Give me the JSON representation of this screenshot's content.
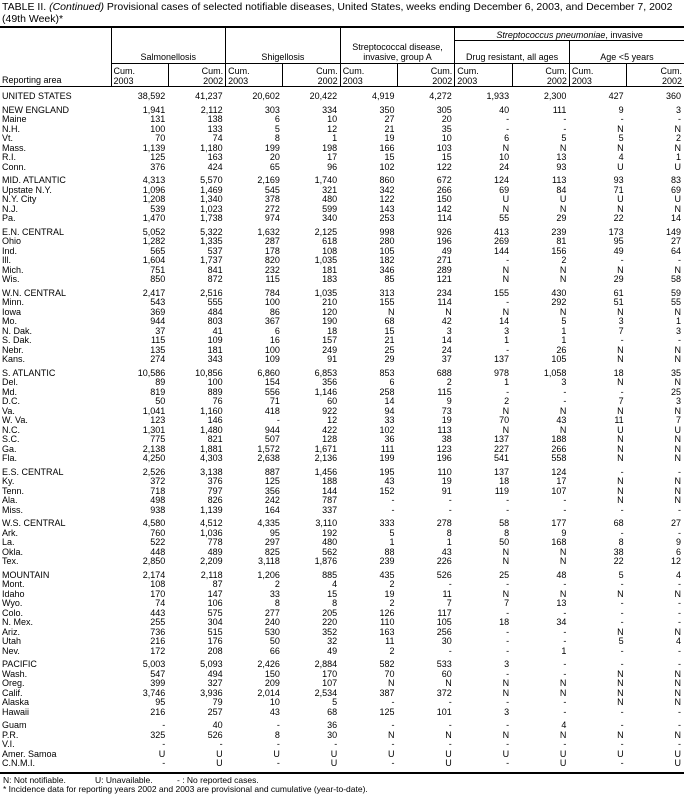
{
  "title": {
    "prefix": "TABLE II. ",
    "continued": "(Continued)",
    "text": " Provisional cases of selected notifiable diseases, United States, weeks ending December 6, 2003, and December 7, 2002 (49th Week)*"
  },
  "header": {
    "reporting_area": "Reporting area",
    "super": "Streptococcus pneumoniae",
    "super_suffix": ", invasive",
    "diseases": [
      "Salmonellosis",
      "Shigellosis",
      "Streptococcal disease, invasive, group A",
      "Drug resistant, all ages",
      "Age <5 years"
    ],
    "cum_labels": [
      "Cum. 2003",
      "Cum. 2002",
      "Cum. 2003",
      "Cum. 2002",
      "Cum. 2003",
      "Cum. 2002",
      "Cum. 2003",
      "Cum. 2002",
      "Cum. 2003",
      "Cum. 2002"
    ]
  },
  "groups": [
    [
      [
        "UNITED STATES",
        "38,592",
        "41,237",
        "20,602",
        "20,422",
        "4,919",
        "4,272",
        "1,933",
        "2,300",
        "427",
        "360"
      ]
    ],
    [
      [
        "NEW ENGLAND",
        "1,941",
        "2,112",
        "303",
        "334",
        "350",
        "305",
        "40",
        "111",
        "9",
        "3"
      ],
      [
        "Maine",
        "131",
        "138",
        "6",
        "10",
        "27",
        "20",
        "-",
        "-",
        "-",
        "-"
      ],
      [
        "N.H.",
        "100",
        "133",
        "5",
        "12",
        "21",
        "35",
        "-",
        "-",
        "N",
        "N"
      ],
      [
        "Vt.",
        "70",
        "74",
        "8",
        "1",
        "19",
        "10",
        "6",
        "5",
        "5",
        "2"
      ],
      [
        "Mass.",
        "1,139",
        "1,180",
        "199",
        "198",
        "166",
        "103",
        "N",
        "N",
        "N",
        "N"
      ],
      [
        "R.I.",
        "125",
        "163",
        "20",
        "17",
        "15",
        "15",
        "10",
        "13",
        "4",
        "1"
      ],
      [
        "Conn.",
        "376",
        "424",
        "65",
        "96",
        "102",
        "122",
        "24",
        "93",
        "U",
        "U"
      ]
    ],
    [
      [
        "MID. ATLANTIC",
        "4,313",
        "5,570",
        "2,169",
        "1,740",
        "860",
        "672",
        "124",
        "113",
        "93",
        "83"
      ],
      [
        "Upstate N.Y.",
        "1,096",
        "1,469",
        "545",
        "321",
        "342",
        "266",
        "69",
        "84",
        "71",
        "69"
      ],
      [
        "N.Y. City",
        "1,208",
        "1,340",
        "378",
        "480",
        "122",
        "150",
        "U",
        "U",
        "U",
        "U"
      ],
      [
        "N.J.",
        "539",
        "1,023",
        "272",
        "599",
        "143",
        "142",
        "N",
        "N",
        "N",
        "N"
      ],
      [
        "Pa.",
        "1,470",
        "1,738",
        "974",
        "340",
        "253",
        "114",
        "55",
        "29",
        "22",
        "14"
      ]
    ],
    [
      [
        "E.N. CENTRAL",
        "5,052",
        "5,322",
        "1,632",
        "2,125",
        "998",
        "926",
        "413",
        "239",
        "173",
        "149"
      ],
      [
        "Ohio",
        "1,282",
        "1,335",
        "287",
        "618",
        "280",
        "196",
        "269",
        "81",
        "95",
        "27"
      ],
      [
        "Ind.",
        "565",
        "537",
        "178",
        "108",
        "105",
        "49",
        "144",
        "156",
        "49",
        "64"
      ],
      [
        "Ill.",
        "1,604",
        "1,737",
        "820",
        "1,035",
        "182",
        "271",
        "-",
        "2",
        "-",
        "-"
      ],
      [
        "Mich.",
        "751",
        "841",
        "232",
        "181",
        "346",
        "289",
        "N",
        "N",
        "N",
        "N"
      ],
      [
        "Wis.",
        "850",
        "872",
        "115",
        "183",
        "85",
        "121",
        "N",
        "N",
        "29",
        "58"
      ]
    ],
    [
      [
        "W.N. CENTRAL",
        "2,417",
        "2,516",
        "784",
        "1,035",
        "313",
        "234",
        "155",
        "430",
        "61",
        "59"
      ],
      [
        "Minn.",
        "543",
        "555",
        "100",
        "210",
        "155",
        "114",
        "-",
        "292",
        "51",
        "55"
      ],
      [
        "Iowa",
        "369",
        "484",
        "86",
        "120",
        "N",
        "N",
        "N",
        "N",
        "N",
        "N"
      ],
      [
        "Mo.",
        "944",
        "803",
        "367",
        "190",
        "68",
        "42",
        "14",
        "5",
        "3",
        "1"
      ],
      [
        "N. Dak.",
        "37",
        "41",
        "6",
        "18",
        "15",
        "3",
        "3",
        "1",
        "7",
        "3"
      ],
      [
        "S. Dak.",
        "115",
        "109",
        "16",
        "157",
        "21",
        "14",
        "1",
        "1",
        "-",
        "-"
      ],
      [
        "Nebr.",
        "135",
        "181",
        "100",
        "249",
        "25",
        "24",
        "-",
        "26",
        "N",
        "N"
      ],
      [
        "Kans.",
        "274",
        "343",
        "109",
        "91",
        "29",
        "37",
        "137",
        "105",
        "N",
        "N"
      ]
    ],
    [
      [
        "S. ATLANTIC",
        "10,586",
        "10,856",
        "6,860",
        "6,853",
        "853",
        "688",
        "978",
        "1,058",
        "18",
        "35"
      ],
      [
        "Del.",
        "89",
        "100",
        "154",
        "356",
        "6",
        "2",
        "1",
        "3",
        "N",
        "N"
      ],
      [
        "Md.",
        "819",
        "889",
        "556",
        "1,146",
        "258",
        "115",
        "-",
        "-",
        "-",
        "25"
      ],
      [
        "D.C.",
        "50",
        "76",
        "71",
        "60",
        "14",
        "9",
        "2",
        "-",
        "7",
        "3"
      ],
      [
        "Va.",
        "1,041",
        "1,160",
        "418",
        "922",
        "94",
        "73",
        "N",
        "N",
        "N",
        "N"
      ],
      [
        "W. Va.",
        "123",
        "146",
        "-",
        "12",
        "33",
        "19",
        "70",
        "43",
        "11",
        "7"
      ],
      [
        "N.C.",
        "1,301",
        "1,480",
        "944",
        "422",
        "102",
        "113",
        "N",
        "N",
        "U",
        "U"
      ],
      [
        "S.C.",
        "775",
        "821",
        "507",
        "128",
        "36",
        "38",
        "137",
        "188",
        "N",
        "N"
      ],
      [
        "Ga.",
        "2,138",
        "1,881",
        "1,572",
        "1,671",
        "111",
        "123",
        "227",
        "266",
        "N",
        "N"
      ],
      [
        "Fla.",
        "4,250",
        "4,303",
        "2,638",
        "2,136",
        "199",
        "196",
        "541",
        "558",
        "N",
        "N"
      ]
    ],
    [
      [
        "E.S. CENTRAL",
        "2,526",
        "3,138",
        "887",
        "1,456",
        "195",
        "110",
        "137",
        "124",
        "-",
        "-"
      ],
      [
        "Ky.",
        "372",
        "376",
        "125",
        "188",
        "43",
        "19",
        "18",
        "17",
        "N",
        "N"
      ],
      [
        "Tenn.",
        "718",
        "797",
        "356",
        "144",
        "152",
        "91",
        "119",
        "107",
        "N",
        "N"
      ],
      [
        "Ala.",
        "498",
        "826",
        "242",
        "787",
        "-",
        "-",
        "-",
        "-",
        "N",
        "N"
      ],
      [
        "Miss.",
        "938",
        "1,139",
        "164",
        "337",
        "-",
        "-",
        "-",
        "-",
        "-",
        "-"
      ]
    ],
    [
      [
        "W.S. CENTRAL",
        "4,580",
        "4,512",
        "4,335",
        "3,110",
        "333",
        "278",
        "58",
        "177",
        "68",
        "27"
      ],
      [
        "Ark.",
        "760",
        "1,036",
        "95",
        "192",
        "5",
        "8",
        "8",
        "9",
        "-",
        "-"
      ],
      [
        "La.",
        "522",
        "778",
        "297",
        "480",
        "1",
        "1",
        "50",
        "168",
        "8",
        "9"
      ],
      [
        "Okla.",
        "448",
        "489",
        "825",
        "562",
        "88",
        "43",
        "N",
        "N",
        "38",
        "6"
      ],
      [
        "Tex.",
        "2,850",
        "2,209",
        "3,118",
        "1,876",
        "239",
        "226",
        "N",
        "N",
        "22",
        "12"
      ]
    ],
    [
      [
        "MOUNTAIN",
        "2,174",
        "2,118",
        "1,206",
        "885",
        "435",
        "526",
        "25",
        "48",
        "5",
        "4"
      ],
      [
        "Mont.",
        "108",
        "87",
        "2",
        "4",
        "2",
        "-",
        "-",
        "-",
        "-",
        "-"
      ],
      [
        "Idaho",
        "170",
        "147",
        "33",
        "15",
        "19",
        "11",
        "N",
        "N",
        "N",
        "N"
      ],
      [
        "Wyo.",
        "74",
        "106",
        "8",
        "8",
        "2",
        "7",
        "7",
        "13",
        "-",
        "-"
      ],
      [
        "Colo.",
        "443",
        "575",
        "277",
        "205",
        "126",
        "117",
        "-",
        "-",
        "-",
        "-"
      ],
      [
        "N. Mex.",
        "255",
        "304",
        "240",
        "220",
        "110",
        "105",
        "18",
        "34",
        "-",
        "-"
      ],
      [
        "Ariz.",
        "736",
        "515",
        "530",
        "352",
        "163",
        "256",
        "-",
        "-",
        "N",
        "N"
      ],
      [
        "Utah",
        "216",
        "176",
        "50",
        "32",
        "11",
        "30",
        "-",
        "-",
        "5",
        "4"
      ],
      [
        "Nev.",
        "172",
        "208",
        "66",
        "49",
        "2",
        "-",
        "-",
        "1",
        "-",
        "-"
      ]
    ],
    [
      [
        "PACIFIC",
        "5,003",
        "5,093",
        "2,426",
        "2,884",
        "582",
        "533",
        "3",
        "-",
        "-",
        "-"
      ],
      [
        "Wash.",
        "547",
        "494",
        "150",
        "170",
        "70",
        "60",
        "-",
        "-",
        "N",
        "N"
      ],
      [
        "Oreg.",
        "399",
        "327",
        "209",
        "107",
        "N",
        "N",
        "N",
        "N",
        "N",
        "N"
      ],
      [
        "Calif.",
        "3,746",
        "3,936",
        "2,014",
        "2,534",
        "387",
        "372",
        "N",
        "N",
        "N",
        "N"
      ],
      [
        "Alaska",
        "95",
        "79",
        "10",
        "5",
        "-",
        "-",
        "-",
        "-",
        "N",
        "N"
      ],
      [
        "Hawaii",
        "216",
        "257",
        "43",
        "68",
        "125",
        "101",
        "3",
        "-",
        "-",
        "-"
      ]
    ],
    [
      [
        "Guam",
        "-",
        "40",
        "-",
        "36",
        "-",
        "-",
        "-",
        "4",
        "-",
        "-"
      ],
      [
        "P.R.",
        "325",
        "526",
        "8",
        "30",
        "N",
        "N",
        "N",
        "N",
        "N",
        "N"
      ],
      [
        "V.I.",
        "-",
        "-",
        "-",
        "-",
        "-",
        "-",
        "-",
        "-",
        "-",
        "-"
      ],
      [
        "Amer. Samoa",
        "U",
        "U",
        "U",
        "U",
        "U",
        "U",
        "U",
        "U",
        "U",
        "U"
      ],
      [
        "C.N.M.I.",
        "-",
        "U",
        "-",
        "U",
        "-",
        "U",
        "-",
        "U",
        "-",
        "U"
      ]
    ]
  ],
  "footer": {
    "legend": [
      "N: Not notifiable.",
      "U: Unavailable.",
      "- : No reported cases."
    ],
    "note": "* Incidence data for reporting years 2002 and 2003 are provisional and cumulative (year-to-date)."
  }
}
